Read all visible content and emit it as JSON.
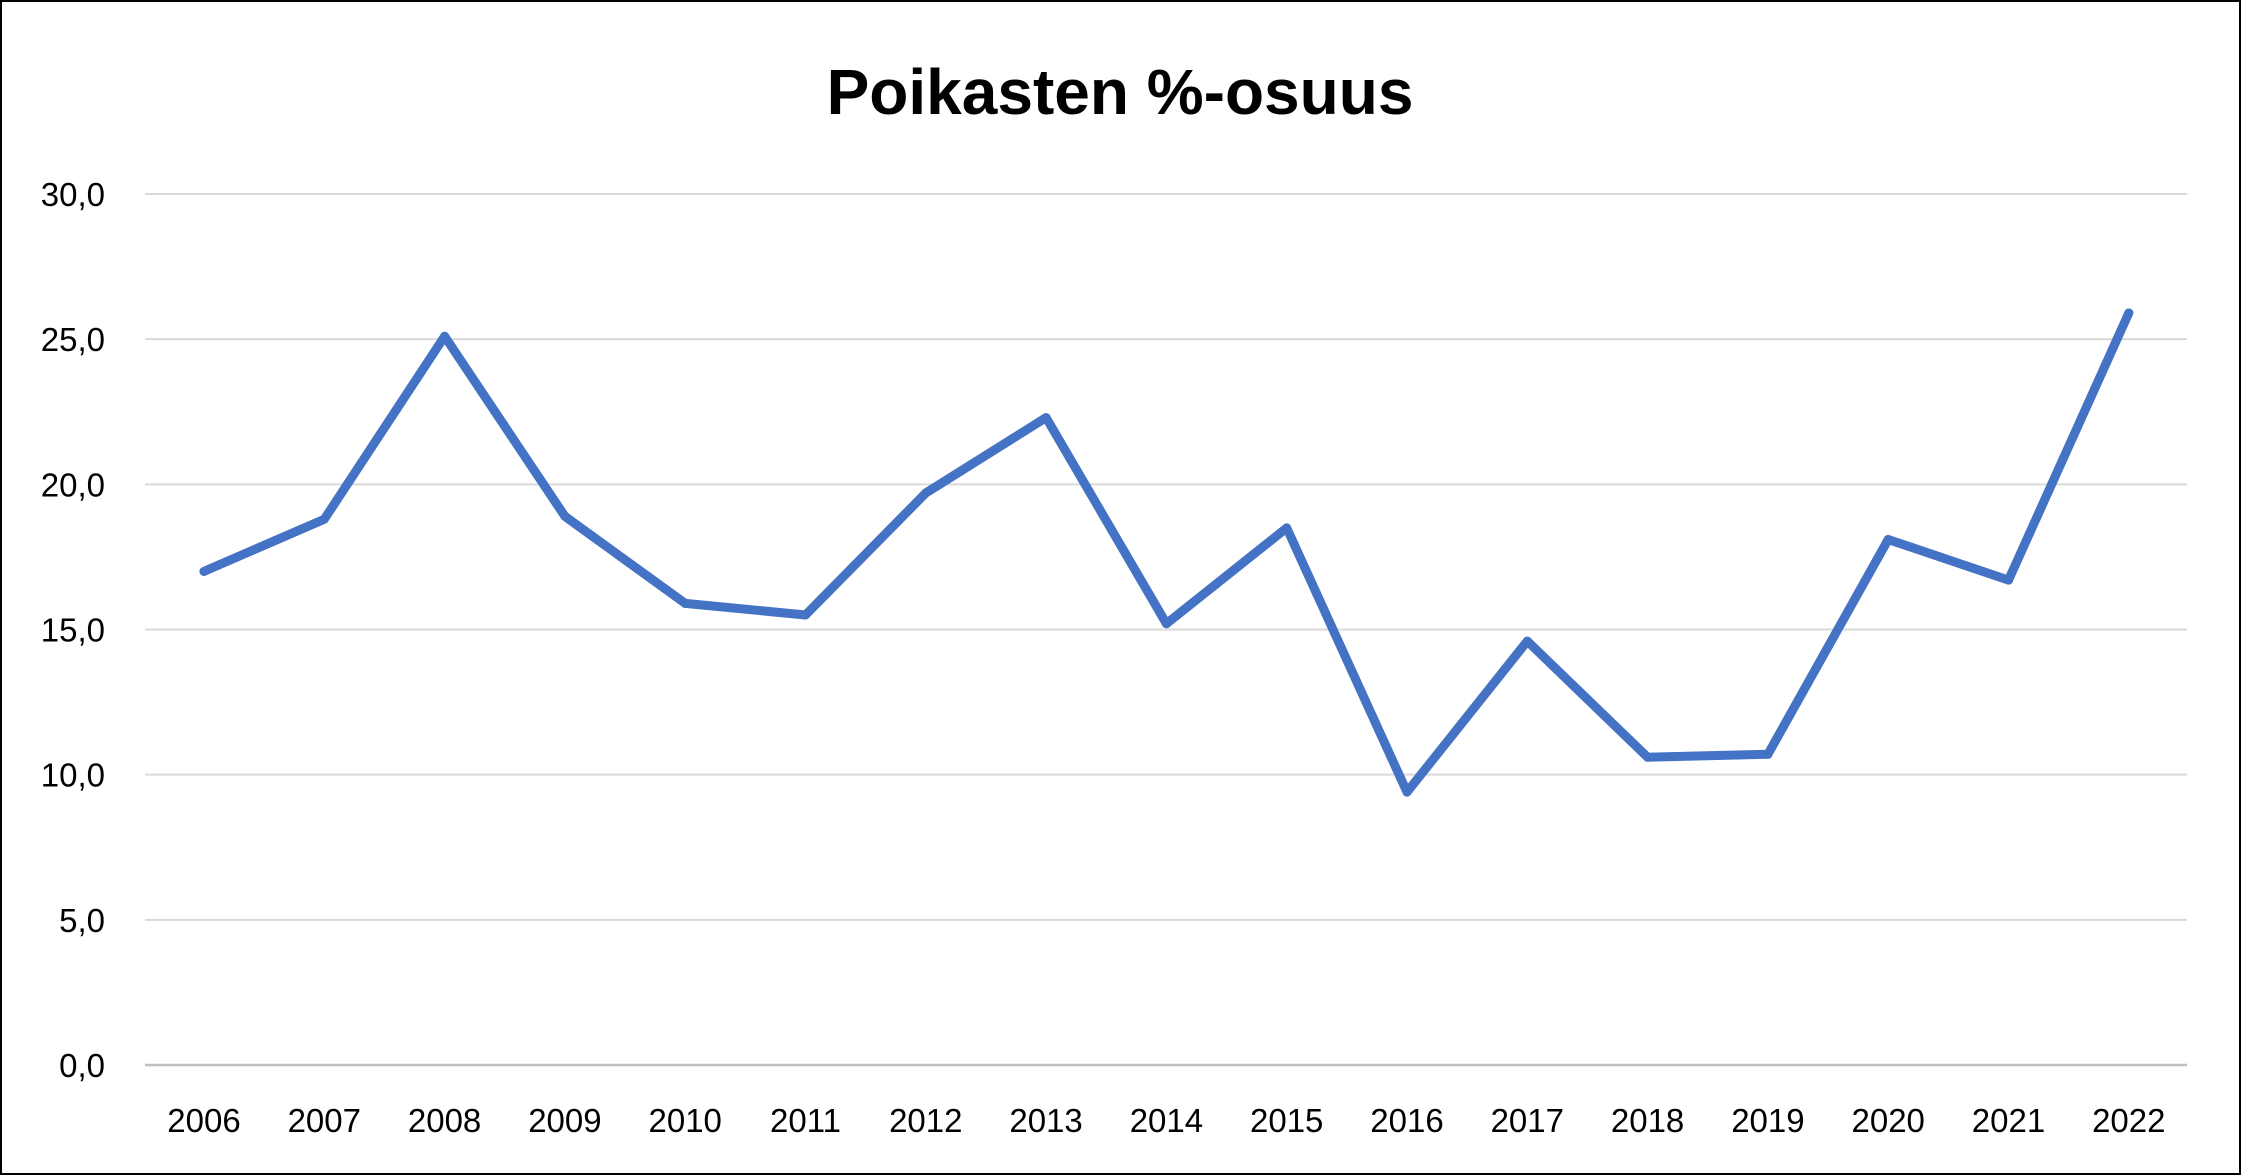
{
  "chart_data": {
    "type": "line",
    "title": "Poikasten %-osuus",
    "xlabel": "",
    "ylabel": "",
    "categories": [
      "2006",
      "2007",
      "2008",
      "2009",
      "2010",
      "2011",
      "2012",
      "2013",
      "2014",
      "2015",
      "2016",
      "2017",
      "2018",
      "2019",
      "2020",
      "2021",
      "2022"
    ],
    "series": [
      {
        "values": [
          17.0,
          18.8,
          25.1,
          18.9,
          15.9,
          15.5,
          19.7,
          22.3,
          15.2,
          18.5,
          9.4,
          14.6,
          10.6,
          10.7,
          18.1,
          16.7,
          25.9
        ]
      }
    ],
    "ylim": [
      0,
      30
    ],
    "yticks": [
      "0,0",
      "5,0",
      "10,0",
      "15,0",
      "20,0",
      "25,0",
      "30,0"
    ],
    "grid": true,
    "legend": "none",
    "colors": {
      "line": "#4472C4",
      "grid": "#D9D9D9",
      "axis": "#BFBFBF",
      "text": "#000000"
    }
  }
}
